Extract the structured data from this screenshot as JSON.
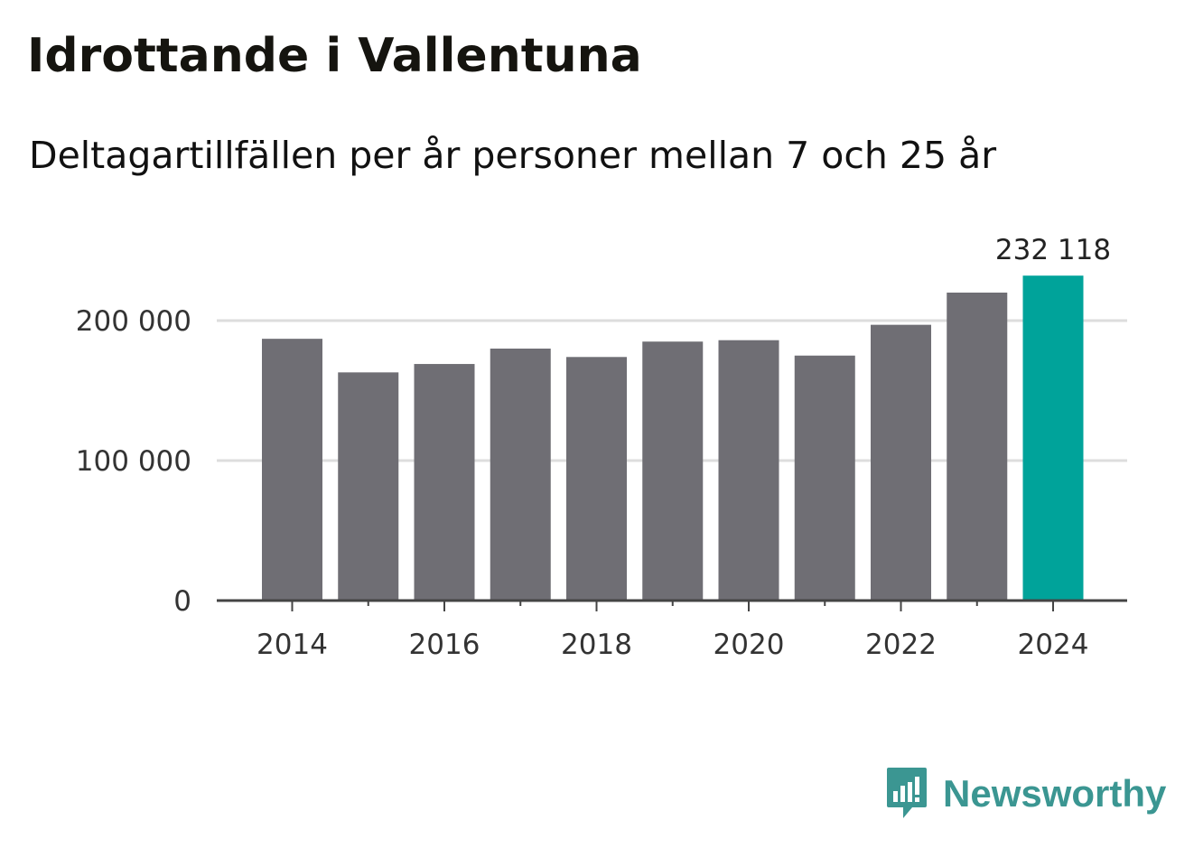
{
  "title": "Idrottande i Vallentuna",
  "subtitle": "Deltagartillfällen per år personer mellan 7 och 25 år",
  "brand": {
    "name": "Newsworthy",
    "icon": "newsworthy-logo-icon",
    "color": "#3b9692"
  },
  "colors": {
    "bar": "#6f6e74",
    "highlight": "#00a39a",
    "grid": "#dddddd",
    "axis": "#444444"
  },
  "chart_data": {
    "type": "bar",
    "title": "Idrottande i Vallentuna",
    "subtitle": "Deltagartillfällen per år personer mellan 7 och 25 år",
    "xlabel": "",
    "ylabel": "",
    "categories": [
      "2014",
      "2015",
      "2016",
      "2017",
      "2018",
      "2019",
      "2020",
      "2021",
      "2022",
      "2023",
      "2024"
    ],
    "values": [
      187000,
      163000,
      169000,
      180000,
      174000,
      185000,
      186000,
      175000,
      197000,
      220000,
      232118
    ],
    "ylim": [
      0,
      240000
    ],
    "yticks": [
      0,
      100000,
      200000
    ],
    "ytick_labels": [
      "0",
      "100 000",
      "200 000"
    ],
    "xtick_labels": [
      "2014",
      "2016",
      "2018",
      "2020",
      "2022",
      "2024"
    ],
    "highlight_index": 10,
    "highlight_label": "232 118",
    "grid": true,
    "legend": "none"
  }
}
